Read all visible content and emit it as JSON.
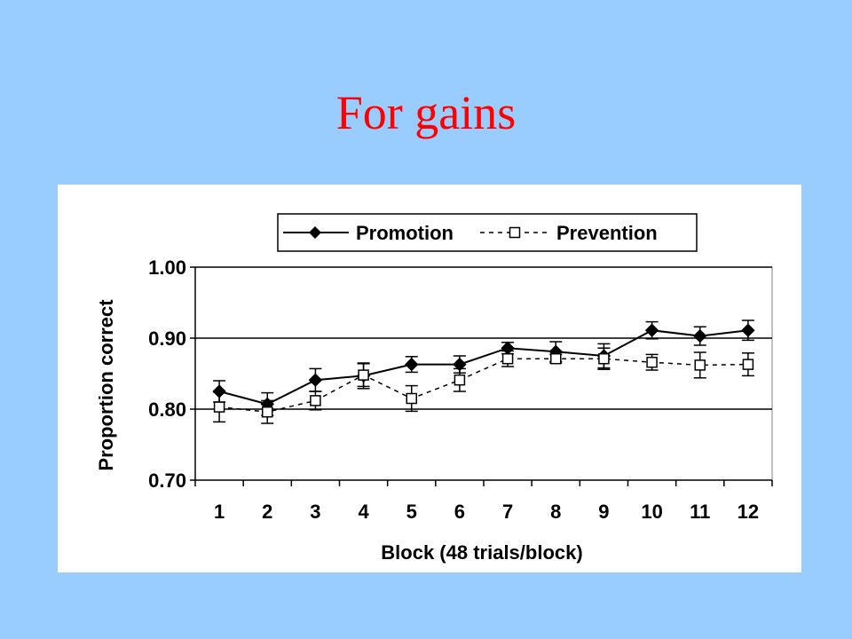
{
  "slide": {
    "title": "For gains"
  },
  "chart_data": {
    "type": "line",
    "title": "",
    "xlabel": "Block (48 trials/block)",
    "ylabel": "Proportion correct",
    "categories": [
      "1",
      "2",
      "3",
      "4",
      "5",
      "6",
      "7",
      "8",
      "9",
      "10",
      "11",
      "12"
    ],
    "ylim": [
      0.7,
      1.0
    ],
    "yticks": [
      "0.70",
      "0.80",
      "0.90",
      "1.00"
    ],
    "gridlines": [
      0.8,
      0.9,
      1.0
    ],
    "legend_position": "top",
    "series": [
      {
        "name": "Promotion",
        "marker": "filled-diamond",
        "line": "solid",
        "values": [
          0.825,
          0.807,
          0.841,
          0.847,
          0.863,
          0.863,
          0.886,
          0.881,
          0.875,
          0.911,
          0.903,
          0.911
        ],
        "errors": [
          0.015,
          0.016,
          0.016,
          0.018,
          0.011,
          0.012,
          0.008,
          0.014,
          0.017,
          0.012,
          0.013,
          0.014
        ]
      },
      {
        "name": "Prevention",
        "marker": "open-square",
        "line": "dashed",
        "values": [
          0.803,
          0.796,
          0.812,
          0.848,
          0.815,
          0.841,
          0.871,
          0.871,
          0.871,
          0.866,
          0.862,
          0.863
        ],
        "errors": [
          0.021,
          0.016,
          0.013,
          0.016,
          0.018,
          0.016,
          0.011,
          0.006,
          0.015,
          0.011,
          0.018,
          0.016
        ]
      }
    ]
  }
}
